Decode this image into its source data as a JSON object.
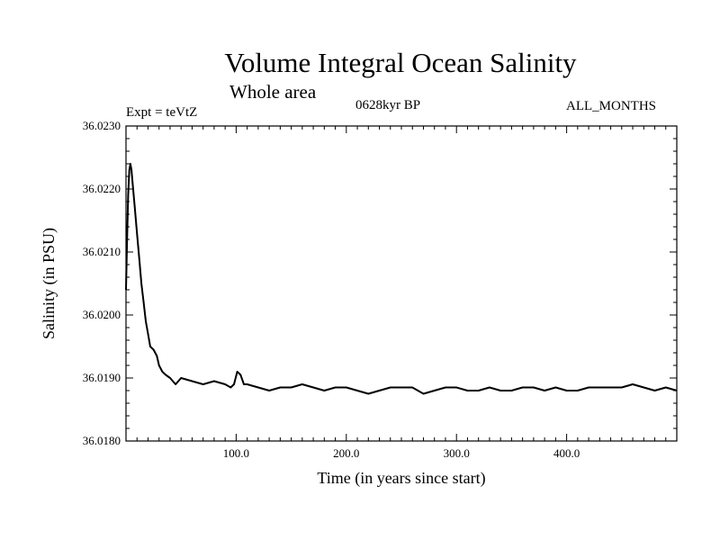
{
  "header": {
    "title": "Volume Integral Ocean Salinity",
    "subtitle": "Whole area",
    "experiment": "Expt = teVtZ",
    "period": "0628kyr BP",
    "months": "ALL_MONTHS"
  },
  "chart_data": {
    "type": "line",
    "title": "Volume Integral Ocean Salinity",
    "subtitle": "Whole area",
    "xlabel": "Time (in years since start)",
    "ylabel": "Salinity (in PSU)",
    "xlim": [
      0,
      500
    ],
    "ylim": [
      36.018,
      36.023
    ],
    "x_ticks": [
      100,
      200,
      300,
      400
    ],
    "x_tick_labels": [
      "100.0",
      "200.0",
      "300.0",
      "400.0"
    ],
    "y_ticks": [
      36.018,
      36.019,
      36.02,
      36.021,
      36.022,
      36.023
    ],
    "y_tick_labels": [
      "36.0180",
      "36.0190",
      "36.0200",
      "36.0210",
      "36.0220",
      "36.0230"
    ],
    "grid": false,
    "series": [
      {
        "x": [
          0,
          1,
          2,
          3,
          4,
          5,
          6,
          8,
          10,
          12,
          14,
          16,
          18,
          20,
          22,
          25,
          28,
          30,
          33,
          36,
          40,
          45,
          50,
          60,
          70,
          80,
          90,
          95,
          98,
          101,
          104,
          107,
          110,
          120,
          130,
          140,
          150,
          160,
          170,
          180,
          190,
          200,
          210,
          220,
          230,
          240,
          250,
          260,
          270,
          280,
          290,
          300,
          310,
          320,
          330,
          340,
          350,
          360,
          370,
          380,
          390,
          400,
          410,
          420,
          430,
          440,
          450,
          460,
          470,
          480,
          490,
          500
        ],
        "y": [
          36.0204,
          36.0212,
          36.0219,
          36.0223,
          36.0224,
          36.0223,
          36.0221,
          36.0217,
          36.0213,
          36.0209,
          36.0205,
          36.0202,
          36.0199,
          36.0197,
          36.0195,
          36.01945,
          36.01935,
          36.0192,
          36.0191,
          36.01905,
          36.019,
          36.0189,
          36.019,
          36.01895,
          36.0189,
          36.01895,
          36.0189,
          36.01885,
          36.0189,
          36.0191,
          36.01905,
          36.0189,
          36.0189,
          36.01885,
          36.0188,
          36.01885,
          36.01885,
          36.0189,
          36.01885,
          36.0188,
          36.01885,
          36.01885,
          36.0188,
          36.01875,
          36.0188,
          36.01885,
          36.01885,
          36.01885,
          36.01875,
          36.0188,
          36.01885,
          36.01885,
          36.0188,
          36.0188,
          36.01885,
          36.0188,
          36.0188,
          36.01885,
          36.01885,
          36.0188,
          36.01885,
          36.0188,
          36.0188,
          36.01885,
          36.01885,
          36.01885,
          36.01885,
          36.0189,
          36.01885,
          36.0188,
          36.01885,
          36.0188
        ]
      }
    ]
  }
}
